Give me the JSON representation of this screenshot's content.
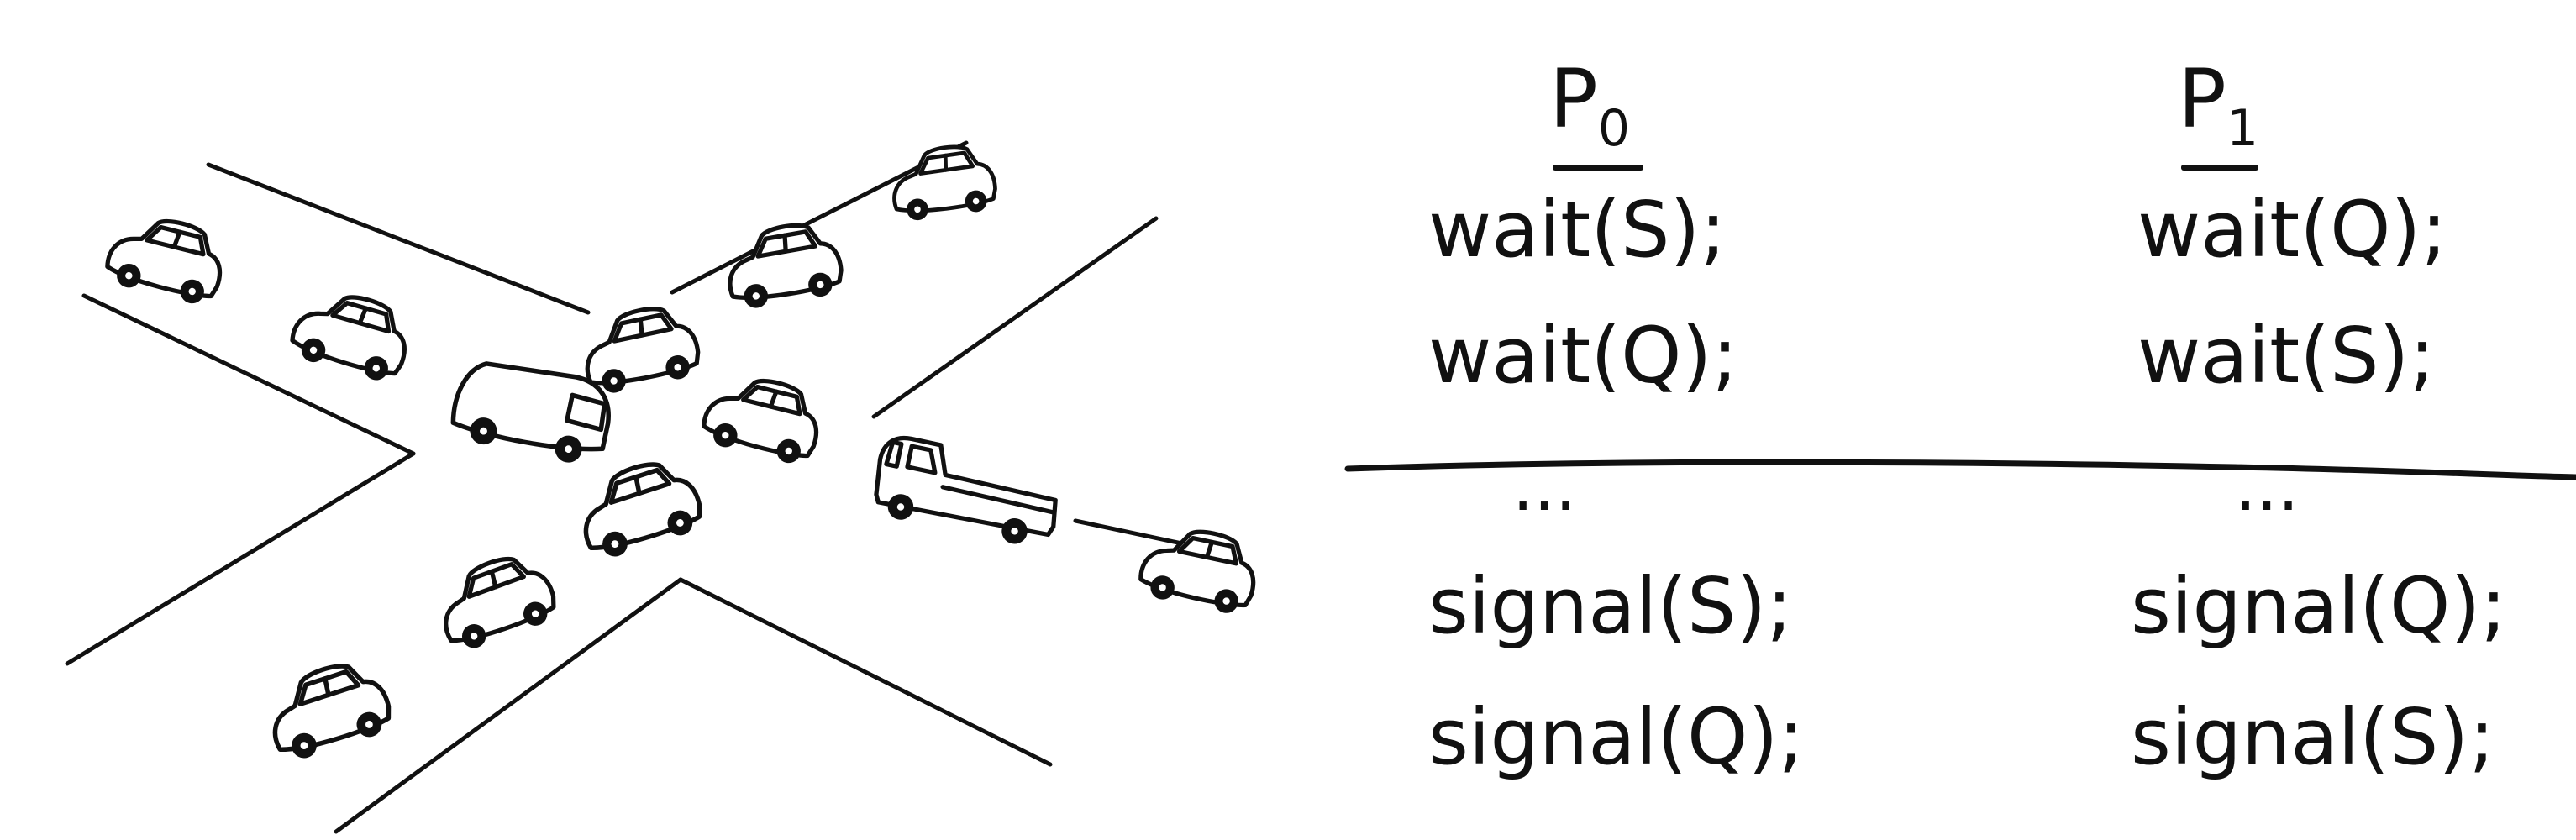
{
  "illustration": {
    "subject": "traffic-gridlock-intersection",
    "car_count": 12
  },
  "processes": [
    {
      "name": "P",
      "index": "0",
      "acquire": [
        "wait(S);",
        "wait(Q);"
      ],
      "ellipsis": "...",
      "release": [
        "signal(S);",
        "signal(Q);"
      ]
    },
    {
      "name": "P",
      "index": "1",
      "acquire": [
        "wait(Q);",
        "wait(S);"
      ],
      "ellipsis": "...",
      "release": [
        "signal(Q);",
        "signal(S);"
      ]
    }
  ],
  "colors": {
    "ink": "#111111",
    "background": "#ffffff"
  }
}
